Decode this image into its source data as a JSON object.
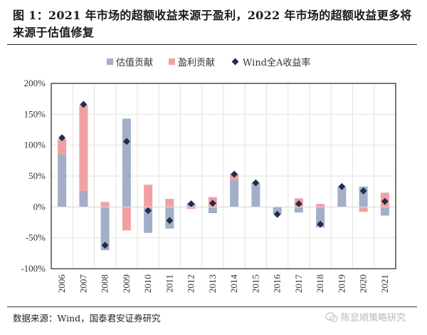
{
  "figure": {
    "title": "图 1：2021 年市场的超额收益来源于盈利，2022 年市场的超额收益更多将来源于估值修复",
    "source": "数据来源：Wind，国泰君安证券研究",
    "watermark": "陈显顺策略研究",
    "watermark_icon": "wechat-icon"
  },
  "legend": {
    "items": [
      {
        "label": "估值贡献",
        "color": "#a3afc8",
        "shape": "square"
      },
      {
        "label": "盈利贡献",
        "color": "#f0a0a3",
        "shape": "square"
      },
      {
        "label": "Wind全A收益率",
        "color": "#1f2d50",
        "shape": "diamond"
      }
    ]
  },
  "chart_data": {
    "type": "bar",
    "subtype": "stacked-bar-with-markers",
    "title": "",
    "xlabel": "",
    "ylabel": "",
    "ylim": [
      -100,
      200
    ],
    "yticks": [
      "-100%",
      "-50%",
      "0%",
      "50%",
      "100%",
      "150%",
      "200%"
    ],
    "ytick_values": [
      -100,
      -50,
      0,
      50,
      100,
      150,
      200
    ],
    "grid": true,
    "legend_position": "top",
    "categories": [
      "2006",
      "2007",
      "2008",
      "2009",
      "2010",
      "2011",
      "2012",
      "2013",
      "2014",
      "2015",
      "2016",
      "2017",
      "2018",
      "2019",
      "2020",
      "2021"
    ],
    "series": [
      {
        "name": "估值贡献",
        "type": "bar",
        "color": "#a3afc8",
        "values": [
          85,
          26,
          -70,
          143,
          -42,
          -35,
          6,
          -10,
          44,
          38,
          -12,
          -9,
          -33,
          33,
          33,
          -14
        ]
      },
      {
        "name": "盈利贡献",
        "type": "bar",
        "color": "#f0a0a3",
        "values": [
          25,
          139,
          8,
          -38,
          36,
          13,
          -3,
          16,
          10,
          1,
          0,
          14,
          5,
          0,
          -8,
          23
        ]
      },
      {
        "name": "Wind全A收益率",
        "type": "marker",
        "marker": "diamond",
        "color": "#1f2d50",
        "values": [
          112,
          166,
          -62,
          106,
          -6,
          -22,
          5,
          6,
          53,
          39,
          -12,
          5,
          -28,
          33,
          26,
          9
        ]
      }
    ]
  }
}
